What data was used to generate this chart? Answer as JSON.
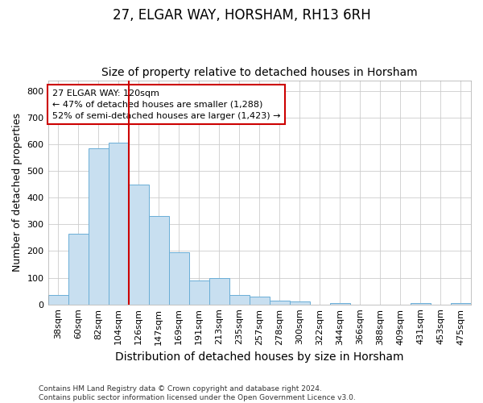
{
  "title": "27, ELGAR WAY, HORSHAM, RH13 6RH",
  "subtitle": "Size of property relative to detached houses in Horsham",
  "xlabel": "Distribution of detached houses by size in Horsham",
  "ylabel": "Number of detached properties",
  "footer_line1": "Contains HM Land Registry data © Crown copyright and database right 2024.",
  "footer_line2": "Contains public sector information licensed under the Open Government Licence v3.0.",
  "categories": [
    "38sqm",
    "60sqm",
    "82sqm",
    "104sqm",
    "126sqm",
    "147sqm",
    "169sqm",
    "191sqm",
    "213sqm",
    "235sqm",
    "257sqm",
    "278sqm",
    "300sqm",
    "322sqm",
    "344sqm",
    "366sqm",
    "388sqm",
    "409sqm",
    "431sqm",
    "453sqm",
    "475sqm"
  ],
  "values": [
    35,
    265,
    585,
    605,
    450,
    330,
    195,
    90,
    100,
    35,
    30,
    15,
    10,
    0,
    5,
    0,
    0,
    0,
    5,
    0,
    5
  ],
  "bar_color": "#c8dff0",
  "bar_edge_color": "#6aaed6",
  "grid_color": "#cccccc",
  "vline_color": "#cc0000",
  "annotation_text": "27 ELGAR WAY: 120sqm\n← 47% of detached houses are smaller (1,288)\n52% of semi-detached houses are larger (1,423) →",
  "annotation_box_color": "white",
  "annotation_box_edge_color": "#cc0000",
  "ylim": [
    0,
    840
  ],
  "yticks": [
    0,
    100,
    200,
    300,
    400,
    500,
    600,
    700,
    800
  ],
  "background_color": "#ffffff",
  "axes_background": "#ffffff",
  "title_fontsize": 12,
  "subtitle_fontsize": 10,
  "ylabel_fontsize": 9,
  "xlabel_fontsize": 10
}
